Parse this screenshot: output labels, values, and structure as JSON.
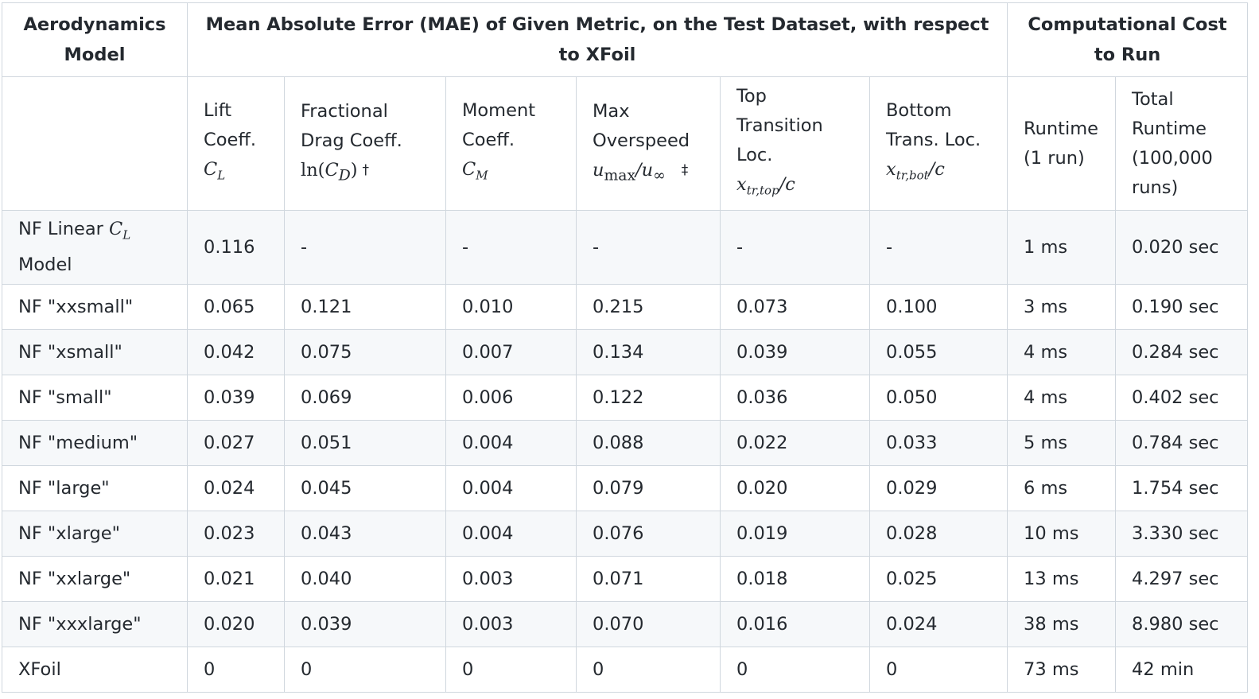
{
  "header": {
    "model_col": "Aerodynamics Model",
    "mae_group": "Mean Absolute Error (MAE) of Given Metric, on the Test Dataset, with respect to XFoil",
    "cost_group": "Computational Cost to Run"
  },
  "subheader": {
    "lift": {
      "text": "Lift Coeff.",
      "sym": "C",
      "sub": "L"
    },
    "drag": {
      "text": "Fractional Drag Coeff.",
      "sym_pre": "ln(",
      "sym": "C",
      "sub": "D",
      "sym_post": ")",
      "mark": "†"
    },
    "moment": {
      "text": "Moment Coeff.",
      "sym": "C",
      "sub": "M"
    },
    "overspeed": {
      "text": "Max Overspeed",
      "sym": "u",
      "sub": "max",
      "sym_div": "/u",
      "sub2": "∞",
      "mark": "‡"
    },
    "top_trans": {
      "text": "Top Transition Loc.",
      "sym": "x",
      "sub": "tr,top",
      "sym_div": "/c"
    },
    "bot_trans": {
      "text": "Bottom Trans. Loc.",
      "sym": "x",
      "sub": "tr,bot",
      "sym_div": "/c"
    },
    "runtime1": "Runtime (1 run)",
    "runtime_total": "Total Runtime (100,000 runs)"
  },
  "rows": [
    {
      "model": "NF Linear",
      "model_sym": "C",
      "model_sub": "L",
      "model_suffix": "Model",
      "values": [
        "0.116",
        "-",
        "-",
        "-",
        "-",
        "-",
        "1 ms",
        "0.020 sec"
      ]
    },
    {
      "model": "NF \"xxsmall\"",
      "values": [
        "0.065",
        "0.121",
        "0.010",
        "0.215",
        "0.073",
        "0.100",
        "3 ms",
        "0.190 sec"
      ]
    },
    {
      "model": "NF \"xsmall\"",
      "values": [
        "0.042",
        "0.075",
        "0.007",
        "0.134",
        "0.039",
        "0.055",
        "4 ms",
        "0.284 sec"
      ]
    },
    {
      "model": "NF \"small\"",
      "values": [
        "0.039",
        "0.069",
        "0.006",
        "0.122",
        "0.036",
        "0.050",
        "4 ms",
        "0.402 sec"
      ]
    },
    {
      "model": "NF \"medium\"",
      "values": [
        "0.027",
        "0.051",
        "0.004",
        "0.088",
        "0.022",
        "0.033",
        "5 ms",
        "0.784 sec"
      ]
    },
    {
      "model": "NF \"large\"",
      "values": [
        "0.024",
        "0.045",
        "0.004",
        "0.079",
        "0.020",
        "0.029",
        "6 ms",
        "1.754 sec"
      ]
    },
    {
      "model": "NF \"xlarge\"",
      "values": [
        "0.023",
        "0.043",
        "0.004",
        "0.076",
        "0.019",
        "0.028",
        "10 ms",
        "3.330 sec"
      ]
    },
    {
      "model": "NF \"xxlarge\"",
      "values": [
        "0.021",
        "0.040",
        "0.003",
        "0.071",
        "0.018",
        "0.025",
        "13 ms",
        "4.297 sec"
      ]
    },
    {
      "model": "NF \"xxxlarge\"",
      "values": [
        "0.020",
        "0.039",
        "0.003",
        "0.070",
        "0.016",
        "0.024",
        "38 ms",
        "8.980 sec"
      ]
    },
    {
      "model": "XFoil",
      "values": [
        "0",
        "0",
        "0",
        "0",
        "0",
        "0",
        "73 ms",
        "42 min"
      ]
    }
  ]
}
